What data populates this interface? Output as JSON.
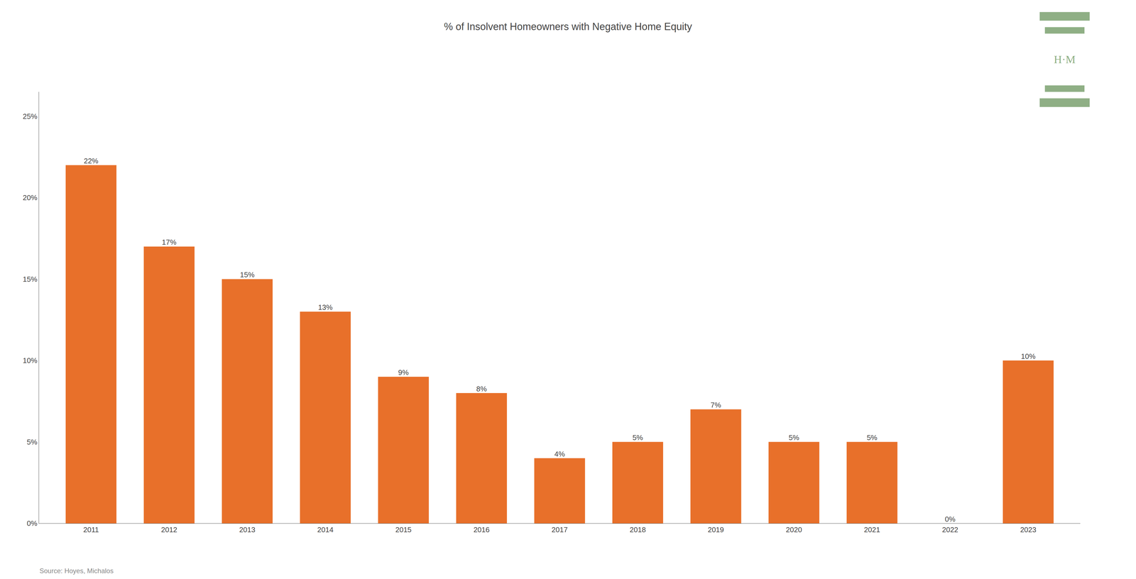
{
  "chart_data": {
    "type": "bar",
    "title": "% of Insolvent Homeowners with Negative Home Equity",
    "categories": [
      "2011",
      "2012",
      "2013",
      "2014",
      "2015",
      "2016",
      "2017",
      "2018",
      "2019",
      "2020",
      "2021",
      "2022",
      "2023"
    ],
    "values": [
      0.22,
      0.17,
      0.15,
      0.13,
      0.09,
      0.08,
      0.04,
      0.05,
      0.07,
      0.05,
      0.05,
      0.0,
      0.1
    ],
    "value_labels": [
      "22%",
      "17%",
      "15%",
      "13%",
      "9%",
      "8%",
      "4%",
      "5%",
      "7%",
      "5%",
      "5%",
      "0%",
      "10%"
    ],
    "data_labels": true,
    "color": "#E8702A",
    "ylim": [
      0,
      0.265
    ],
    "yticks": [
      {
        "value": 0,
        "label": "0%"
      },
      {
        "value": 0.05,
        "label": "5%"
      },
      {
        "value": 0.1,
        "label": "10%"
      },
      {
        "value": 0.15,
        "label": "15%"
      },
      {
        "value": 0.2,
        "label": "20%"
      },
      {
        "value": 0.25,
        "label": "25%"
      }
    ],
    "grid": false,
    "annotations": [
      {
        "text": "Source: Hoyes, Michalos"
      },
      {
        "text": "H·M",
        "color": "#8FAF85"
      }
    ]
  }
}
